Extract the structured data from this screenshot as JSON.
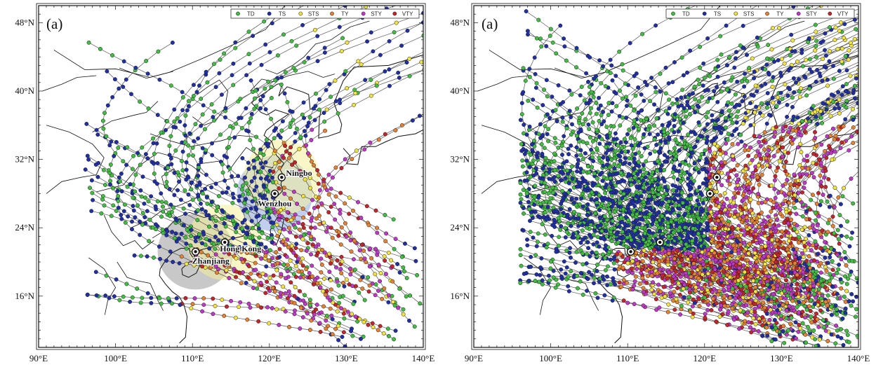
{
  "panels": [
    {
      "id": "left",
      "label": "(a)",
      "legend": [
        {
          "key": "TD",
          "label": "TD",
          "color": "#3fbf3f"
        },
        {
          "key": "TS",
          "label": "TS",
          "color": "#1f2fa8"
        },
        {
          "key": "STS",
          "label": "STS",
          "color": "#f2e43a"
        },
        {
          "key": "TY",
          "label": "TY",
          "color": "#e8812f"
        },
        {
          "key": "STY",
          "label": "STY",
          "color": "#c136c8"
        },
        {
          "key": "VTY",
          "label": "VTY",
          "color": "#c7232a"
        }
      ],
      "cities": [
        {
          "name": "Ningbo",
          "lon": 121.6,
          "lat": 29.9,
          "show_label": true
        },
        {
          "name": "Wenzhou",
          "lon": 120.7,
          "lat": 28.0,
          "show_label": true
        },
        {
          "name": "Hong Kong",
          "lon": 114.2,
          "lat": 22.3,
          "show_label": true
        },
        {
          "name": "Zhanjiang",
          "lon": 110.4,
          "lat": 21.2,
          "show_label": true
        }
      ],
      "impact_zones": [
        {
          "city": "Zhanjiang",
          "color": "#9a9a9a"
        },
        {
          "city": "Hong Kong",
          "color": "#f4f09a"
        },
        {
          "city": "Wenzhou",
          "color": "#8fa6e0"
        },
        {
          "city": "Ningbo",
          "color": "#f4f09a"
        }
      ],
      "track_density": "low"
    },
    {
      "id": "right",
      "label": "(a)",
      "legend": [
        {
          "key": "TD",
          "label": "TD",
          "color": "#3fbf3f"
        },
        {
          "key": "TS",
          "label": "TS",
          "color": "#1f2fa8"
        },
        {
          "key": "STS",
          "label": "STS",
          "color": "#f2e43a"
        },
        {
          "key": "TY",
          "label": "TY",
          "color": "#e8812f"
        },
        {
          "key": "STY",
          "label": "STY",
          "color": "#c136c8"
        },
        {
          "key": "VTY",
          "label": "VTY",
          "color": "#c7232a"
        }
      ],
      "cities": [
        {
          "name": "Ningbo",
          "lon": 121.6,
          "lat": 29.9,
          "show_label": false
        },
        {
          "name": "Wenzhou",
          "lon": 120.7,
          "lat": 28.0,
          "show_label": false
        },
        {
          "name": "Hong Kong",
          "lon": 114.2,
          "lat": 22.3,
          "show_label": false
        },
        {
          "name": "Zhanjiang",
          "lon": 110.4,
          "lat": 21.2,
          "show_label": false
        }
      ],
      "impact_zones": [],
      "track_density": "high"
    }
  ],
  "lon_ticks": [
    "90°E",
    "100°E",
    "110°E",
    "120°E",
    "130°E",
    "140°E"
  ],
  "lat_ticks": [
    "16°N",
    "24°N",
    "32°N",
    "40°N",
    "48°N"
  ],
  "extent": {
    "lon_min": 90,
    "lon_max": 140,
    "lat_min": 10,
    "lat_max": 50
  }
}
